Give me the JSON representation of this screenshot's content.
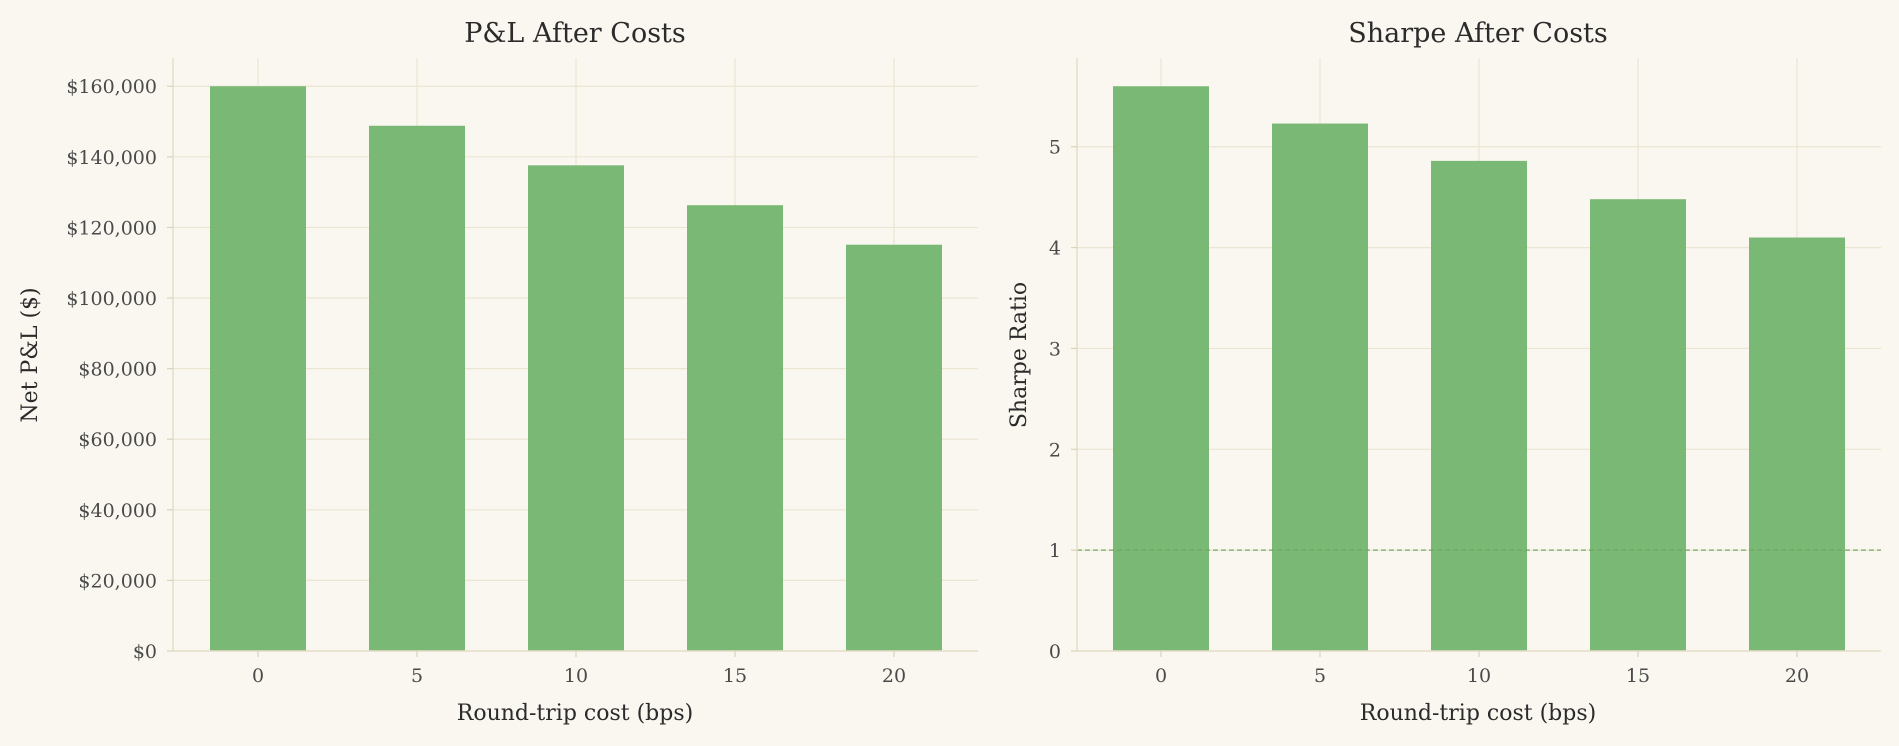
{
  "chart_data": [
    {
      "type": "bar",
      "title": "P&L After Costs",
      "xlabel": "Round-trip cost (bps)",
      "ylabel": "Net P&L ($)",
      "categories": [
        "0",
        "5",
        "10",
        "15",
        "20"
      ],
      "values": [
        160000,
        148800,
        137600,
        126300,
        115100
      ],
      "ylim": [
        0,
        168000
      ],
      "yticks": [
        0,
        20000,
        40000,
        60000,
        80000,
        100000,
        120000,
        140000,
        160000
      ],
      "ytick_labels": [
        "$0",
        "$20,000",
        "$40,000",
        "$60,000",
        "$80,000",
        "$100,000",
        "$120,000",
        "$140,000",
        "$160,000"
      ],
      "grid": true,
      "bar_color": "#73b46e"
    },
    {
      "type": "bar",
      "title": "Sharpe After Costs",
      "xlabel": "Round-trip cost (bps)",
      "ylabel": "Sharpe Ratio",
      "categories": [
        "0",
        "5",
        "10",
        "15",
        "20"
      ],
      "values": [
        5.6,
        5.23,
        4.86,
        4.48,
        4.1
      ],
      "ylim": [
        0,
        5.88
      ],
      "yticks": [
        0,
        1,
        2,
        3,
        4,
        5
      ],
      "ytick_labels": [
        "0",
        "1",
        "2",
        "3",
        "4",
        "5"
      ],
      "reference_line": 1,
      "grid": true,
      "bar_color": "#73b46e"
    }
  ]
}
